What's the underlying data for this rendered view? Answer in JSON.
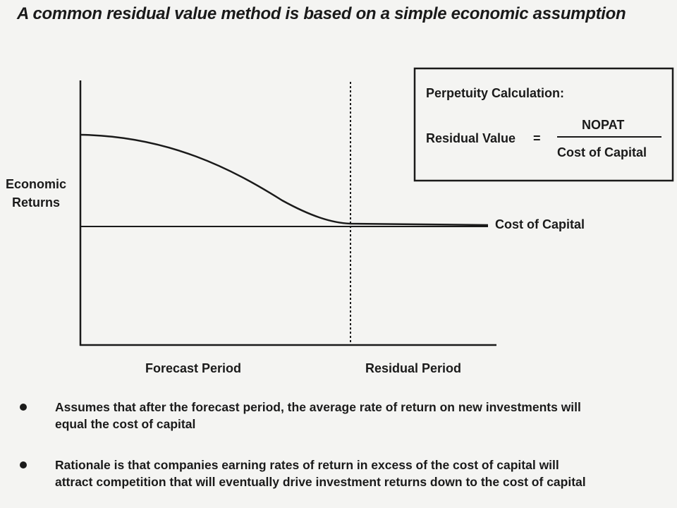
{
  "title": "A common residual value method is based on a simple economic assumption",
  "diagram": {
    "y_axis_label_line1": "Economic",
    "y_axis_label_line2": "Returns",
    "x_label_forecast": "Forecast Period",
    "x_label_residual": "Residual Period",
    "line_label": "Cost of Capital"
  },
  "formula_box": {
    "heading": "Perpetuity Calculation:",
    "lhs": "Residual Value",
    "equals": "=",
    "numerator": "NOPAT",
    "denominator": "Cost of Capital"
  },
  "bullets": [
    {
      "line1": "Assumes that  after the forecast period, the average rate of return on new investments will",
      "line2": "equal the cost of capital"
    },
    {
      "line1": "Rationale is that companies earning rates of return in excess of the cost of capital will",
      "line2": "attract competition that will eventually drive investment returns down to the cost of capital"
    }
  ]
}
